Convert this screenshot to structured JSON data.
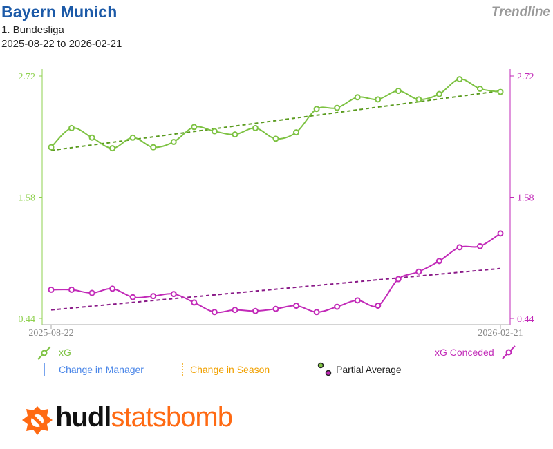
{
  "header": {
    "team": "Bayern Munich",
    "competition": "1. Bundesliga",
    "date_range": "2025-08-22 to 2026-02-21",
    "view": "Trendline"
  },
  "legend": {
    "xg": "xG",
    "xg_conceded": "xG Conceded",
    "manager_change": "Change in Manager",
    "season_change": "Change in Season",
    "partial_average": "Partial Average"
  },
  "logo": {
    "part1": "hudl",
    "part2": "statsbomb"
  },
  "colors": {
    "xg": "#7dc242",
    "xg_trend": "#5a9b1e",
    "xg_conceded": "#c22ab8",
    "xg_conceded_trend": "#8a1a88",
    "manager": "#4a86e8",
    "season": "#f0a000",
    "title": "#1c5aa8"
  },
  "chart_data": {
    "type": "line",
    "x_start_label": "2025-08-22",
    "x_end_label": "2026-02-21",
    "left_axis": {
      "ticks": [
        "2.72",
        "1.58",
        "0.44"
      ],
      "range": [
        0.44,
        2.72
      ]
    },
    "right_axis": {
      "ticks": [
        "2.72",
        "1.58",
        "0.44"
      ],
      "range": [
        0.44,
        2.72
      ]
    },
    "series": [
      {
        "name": "xG",
        "values": [
          2.05,
          2.23,
          2.14,
          2.04,
          2.14,
          2.05,
          2.1,
          2.24,
          2.2,
          2.17,
          2.23,
          2.13,
          2.19,
          2.41,
          2.42,
          2.52,
          2.5,
          2.58,
          2.5,
          2.55,
          2.69,
          2.6,
          2.57
        ],
        "trend": [
          2.02,
          2.58
        ]
      },
      {
        "name": "xG Conceded",
        "values": [
          0.71,
          0.71,
          0.68,
          0.72,
          0.64,
          0.65,
          0.67,
          0.59,
          0.5,
          0.52,
          0.51,
          0.53,
          0.56,
          0.5,
          0.55,
          0.61,
          0.56,
          0.81,
          0.88,
          0.98,
          1.11,
          1.12,
          1.24
        ],
        "trend": [
          0.52,
          0.91
        ]
      }
    ]
  }
}
